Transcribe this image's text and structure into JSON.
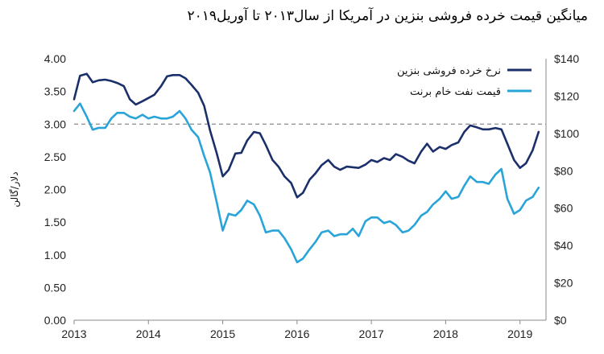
{
  "chart_data": {
    "type": "line",
    "title": "میانگین قیمت خرده فروشی بنزین در آمریکا از سال۲۰۱۳ تا آوریل۲۰۱۹",
    "ylabel": "دلار/گالن",
    "y2label": "",
    "x_ticks": [
      "2013",
      "2014",
      "2015",
      "2016",
      "2017",
      "2018",
      "2019"
    ],
    "xlim": [
      2013,
      2019.35
    ],
    "ylim": [
      0,
      4
    ],
    "y_ticks": [
      "0.00",
      "0.50",
      "1.00",
      "1.50",
      "2.00",
      "2.50",
      "3.00",
      "3.50",
      "4.00"
    ],
    "y2lim": [
      0,
      140
    ],
    "y2_ticks": [
      "$0",
      "$20",
      "$40",
      "$60",
      "$80",
      "$100",
      "$120",
      "$140"
    ],
    "reference_line": {
      "value": 3.0,
      "style": "dashed"
    },
    "grid": false,
    "legend_position": "top-right",
    "series": [
      {
        "name": "نرخ خرده فروشی بنزین",
        "color": "#1b2f6b",
        "axis": "left",
        "x": [
          2013.0,
          2013.08,
          2013.17,
          2013.25,
          2013.33,
          2013.42,
          2013.5,
          2013.58,
          2013.67,
          2013.75,
          2013.83,
          2013.92,
          2014.0,
          2014.08,
          2014.17,
          2014.25,
          2014.33,
          2014.42,
          2014.5,
          2014.58,
          2014.67,
          2014.75,
          2014.83,
          2014.92,
          2015.0,
          2015.08,
          2015.17,
          2015.25,
          2015.33,
          2015.42,
          2015.5,
          2015.58,
          2015.67,
          2015.75,
          2015.83,
          2015.92,
          2016.0,
          2016.08,
          2016.17,
          2016.25,
          2016.33,
          2016.42,
          2016.5,
          2016.58,
          2016.67,
          2016.75,
          2016.83,
          2016.92,
          2017.0,
          2017.08,
          2017.17,
          2017.25,
          2017.33,
          2017.42,
          2017.5,
          2017.58,
          2017.67,
          2017.75,
          2017.83,
          2017.92,
          2018.0,
          2018.08,
          2018.17,
          2018.25,
          2018.33,
          2018.42,
          2018.5,
          2018.58,
          2018.67,
          2018.75,
          2018.83,
          2018.92,
          2019.0,
          2019.08,
          2019.17,
          2019.25
        ],
        "values": [
          3.38,
          3.74,
          3.77,
          3.64,
          3.67,
          3.68,
          3.66,
          3.63,
          3.58,
          3.38,
          3.3,
          3.35,
          3.4,
          3.45,
          3.58,
          3.73,
          3.75,
          3.75,
          3.7,
          3.6,
          3.48,
          3.28,
          2.9,
          2.55,
          2.2,
          2.3,
          2.55,
          2.56,
          2.75,
          2.88,
          2.86,
          2.68,
          2.45,
          2.35,
          2.2,
          2.1,
          1.88,
          1.95,
          2.15,
          2.25,
          2.37,
          2.45,
          2.35,
          2.3,
          2.35,
          2.34,
          2.33,
          2.38,
          2.45,
          2.42,
          2.48,
          2.45,
          2.54,
          2.5,
          2.44,
          2.4,
          2.58,
          2.7,
          2.58,
          2.65,
          2.62,
          2.68,
          2.72,
          2.88,
          2.98,
          2.95,
          2.92,
          2.92,
          2.94,
          2.92,
          2.7,
          2.45,
          2.33,
          2.4,
          2.6,
          2.88
        ]
      },
      {
        "name": "قیمت نفت خام برنت",
        "color": "#29a4d9",
        "axis": "right",
        "x": [
          2013.0,
          2013.08,
          2013.17,
          2013.25,
          2013.33,
          2013.42,
          2013.5,
          2013.58,
          2013.67,
          2013.75,
          2013.83,
          2013.92,
          2014.0,
          2014.08,
          2014.17,
          2014.25,
          2014.33,
          2014.42,
          2014.5,
          2014.58,
          2014.67,
          2014.75,
          2014.83,
          2014.92,
          2015.0,
          2015.08,
          2015.17,
          2015.25,
          2015.33,
          2015.42,
          2015.5,
          2015.58,
          2015.67,
          2015.75,
          2015.83,
          2015.92,
          2016.0,
          2016.08,
          2016.17,
          2016.25,
          2016.33,
          2016.42,
          2016.5,
          2016.58,
          2016.67,
          2016.75,
          2016.83,
          2016.92,
          2017.0,
          2017.08,
          2017.17,
          2017.25,
          2017.33,
          2017.42,
          2017.5,
          2017.58,
          2017.67,
          2017.75,
          2017.83,
          2017.92,
          2018.0,
          2018.08,
          2018.17,
          2018.25,
          2018.33,
          2018.42,
          2018.5,
          2018.58,
          2018.67,
          2018.75,
          2018.83,
          2018.92,
          2019.0,
          2019.08,
          2019.17,
          2019.25
        ],
        "values": [
          112,
          116,
          109,
          102,
          103,
          103,
          108,
          111,
          111,
          109,
          108,
          110,
          108,
          109,
          108,
          108,
          109,
          112,
          108,
          102,
          98,
          88,
          79,
          63,
          48,
          57,
          56,
          59,
          64,
          62,
          56,
          47,
          48,
          48,
          44,
          38,
          31,
          33,
          38,
          42,
          47,
          48,
          45,
          46,
          46,
          49,
          45,
          53,
          55,
          55,
          52,
          53,
          51,
          47,
          48,
          51,
          56,
          58,
          62,
          65,
          69,
          65,
          66,
          72,
          77,
          74,
          74,
          73,
          78,
          81,
          65,
          57,
          59,
          64,
          66,
          71
        ]
      }
    ]
  }
}
